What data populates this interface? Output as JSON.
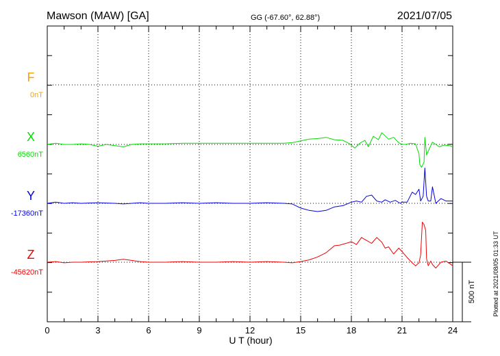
{
  "header": {
    "station": "Mawson (MAW)  [GA]",
    "coords": "GG (-67.60°,  62.88°)",
    "date": "2021/07/05"
  },
  "footer": {
    "plotted": "Plotted at 2021/08/05 01:33 UT",
    "scale_label": "500 nT"
  },
  "chart_data": {
    "type": "line",
    "xlabel": "U T (hour)",
    "xlim": [
      0,
      24
    ],
    "xticks": [
      0,
      3,
      6,
      9,
      12,
      15,
      18,
      21,
      24
    ],
    "grid": true,
    "y_scale_per_division_nT": 250,
    "series": [
      {
        "name": "F",
        "baseline_label": "0nT",
        "color": "#f4a300",
        "x": [],
        "y": []
      },
      {
        "name": "X",
        "baseline_label": "6560nT",
        "color": "#00dd00",
        "x": [
          0,
          0.5,
          1,
          1.5,
          2,
          2.5,
          3,
          3.5,
          4,
          4.5,
          5,
          5.5,
          6,
          7,
          8,
          9,
          10,
          11,
          12,
          13,
          14,
          14.5,
          15,
          15.5,
          16,
          16.5,
          17,
          17.5,
          17.9,
          18.2,
          18.5,
          18.8,
          19,
          19.3,
          19.6,
          19.8,
          20.2,
          20.5,
          20.8,
          21,
          21.2,
          21.5,
          21.8,
          22,
          22.05,
          22.15,
          22.3,
          22.35,
          22.45,
          22.6,
          22.8,
          23.2,
          23.5,
          23.8,
          24
        ],
        "y": [
          0,
          10,
          0,
          0,
          5,
          0,
          -15,
          0,
          -10,
          -20,
          0,
          5,
          5,
          5,
          10,
          10,
          10,
          10,
          10,
          10,
          10,
          15,
          30,
          45,
          50,
          60,
          40,
          35,
          5,
          -30,
          10,
          35,
          -20,
          70,
          40,
          100,
          45,
          60,
          15,
          0,
          0,
          10,
          5,
          -80,
          -170,
          -195,
          -150,
          60,
          -90,
          -40,
          20,
          -20,
          -5,
          -10,
          -20
        ]
      },
      {
        "name": "Y",
        "baseline_label": "-17360nT",
        "color": "#0000dd",
        "x": [
          0,
          0.5,
          1,
          1.5,
          2,
          3,
          4,
          4.5,
          5,
          5.5,
          6,
          7,
          8,
          9,
          10,
          11,
          12,
          13,
          14,
          14.5,
          15,
          15.5,
          16,
          16.5,
          17,
          17.5,
          18,
          18.3,
          18.6,
          18.9,
          19.2,
          19.5,
          19.8,
          20,
          20.3,
          20.6,
          20.9,
          21,
          21.3,
          21.6,
          21.8,
          22,
          22.1,
          22.25,
          22.35,
          22.45,
          22.55,
          22.7,
          22.8,
          23,
          23.3,
          23.6,
          24
        ],
        "y": [
          0,
          10,
          0,
          5,
          0,
          5,
          0,
          -5,
          0,
          5,
          0,
          0,
          5,
          0,
          5,
          0,
          0,
          5,
          0,
          -5,
          -40,
          -60,
          -70,
          -60,
          -30,
          -20,
          10,
          20,
          10,
          60,
          70,
          20,
          10,
          30,
          10,
          25,
          0,
          10,
          10,
          95,
          75,
          120,
          20,
          60,
          300,
          60,
          20,
          20,
          140,
          0,
          40,
          20,
          20
        ]
      },
      {
        "name": "Z",
        "baseline_label": "-45620nT",
        "color": "#ee0000",
        "x": [
          0,
          0.5,
          1,
          1.5,
          2,
          3,
          4,
          4.5,
          5,
          5.5,
          6,
          7,
          8,
          9,
          10,
          11,
          12,
          13,
          14,
          14.5,
          15,
          15.5,
          16,
          16.5,
          17,
          17.3,
          17.8,
          18,
          18.3,
          18.6,
          18.9,
          19.2,
          19.5,
          19.8,
          20,
          20.2,
          20.5,
          20.8,
          21,
          21.3,
          21.6,
          21.8,
          22,
          22.1,
          22.2,
          22.3,
          22.4,
          22.45,
          22.55,
          22.7,
          22.8,
          23,
          23.3,
          23.6,
          23.8,
          24
        ],
        "y": [
          0,
          5,
          -5,
          0,
          0,
          5,
          15,
          25,
          15,
          5,
          0,
          0,
          5,
          0,
          0,
          5,
          0,
          5,
          0,
          -5,
          5,
          20,
          45,
          80,
          140,
          145,
          165,
          175,
          150,
          210,
          185,
          160,
          210,
          170,
          120,
          130,
          70,
          120,
          90,
          40,
          -5,
          -30,
          -5,
          60,
          340,
          320,
          270,
          30,
          -30,
          10,
          -20,
          -50,
          0,
          10,
          -10,
          -30
        ]
      }
    ]
  }
}
